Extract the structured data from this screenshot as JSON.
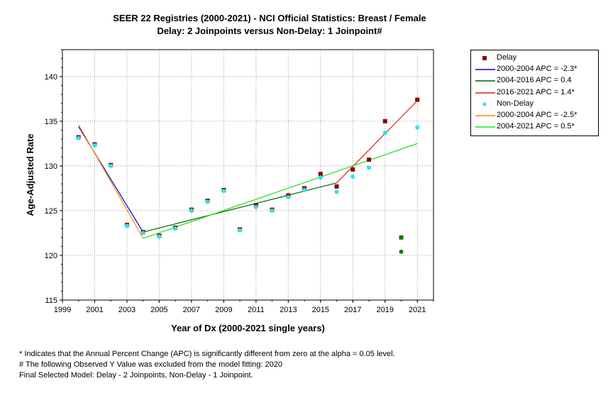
{
  "title": {
    "line1": "SEER 22 Registries (2000-2021) - NCI Official Statistics: Breast / Female",
    "line2": "Delay: 2 Joinpoints  versus  Non-Delay: 1 Joinpoint#"
  },
  "chart_data": {
    "type": "scatter",
    "xlabel": "Year of Dx (2000-2021 single years)",
    "ylabel": "Age-Adjusted Rate",
    "xlim": [
      1999,
      2022
    ],
    "ylim": [
      115,
      143
    ],
    "x_ticks": [
      "1999",
      "2001",
      "2003",
      "2005",
      "2007",
      "2009",
      "2011",
      "2013",
      "2015",
      "2017",
      "2019",
      "2021"
    ],
    "y_ticks": [
      "115",
      "120",
      "125",
      "130",
      "135",
      "140"
    ],
    "grid": true,
    "legend_position": "right",
    "series": [
      {
        "name": "Delay",
        "kind": "points",
        "marker": "square",
        "color": "#8b0000",
        "x": [
          2000,
          2001,
          2002,
          2003,
          2004,
          2005,
          2006,
          2007,
          2008,
          2009,
          2010,
          2011,
          2012,
          2013,
          2014,
          2015,
          2016,
          2017,
          2018,
          2019,
          2021
        ],
        "y": [
          133.2,
          132.4,
          130.1,
          123.4,
          122.6,
          122.2,
          123.1,
          125.1,
          126.1,
          127.3,
          122.9,
          125.6,
          125.1,
          126.7,
          127.5,
          129.1,
          127.7,
          129.6,
          130.7,
          135.0,
          137.4
        ]
      },
      {
        "name": "2000-2004 APC  =  -2.3*",
        "kind": "line",
        "color": "#0000cc",
        "x": [
          2000,
          2004
        ],
        "y": [
          134.4,
          122.6
        ]
      },
      {
        "name": "2004-2016 APC  =  0.4",
        "kind": "line",
        "color": "#006400",
        "x": [
          2004,
          2016
        ],
        "y": [
          122.6,
          128.1
        ]
      },
      {
        "name": "2016-2021 APC  =  1.4*",
        "kind": "line",
        "color": "#dd2222",
        "x": [
          2016,
          2021
        ],
        "y": [
          128.1,
          137.3
        ]
      },
      {
        "name": "Non-Delay",
        "kind": "points",
        "marker": "circle",
        "color": "#22e5f0",
        "x": [
          2000,
          2001,
          2002,
          2003,
          2004,
          2005,
          2006,
          2007,
          2008,
          2009,
          2010,
          2011,
          2012,
          2013,
          2014,
          2015,
          2016,
          2017,
          2018,
          2019,
          2021
        ],
        "y": [
          133.1,
          132.3,
          130.0,
          123.3,
          122.5,
          122.1,
          123.0,
          125.0,
          126.0,
          127.2,
          122.8,
          125.4,
          125.0,
          126.5,
          127.3,
          128.7,
          127.1,
          128.8,
          129.8,
          133.7,
          134.3
        ]
      },
      {
        "name": "2000-2004 APC  =  -2.5*",
        "kind": "line",
        "color": "#ff8c00",
        "x": [
          2000,
          2004
        ],
        "y": [
          134.6,
          121.9
        ]
      },
      {
        "name": "2004-2021 APC  =  0.5*",
        "kind": "line",
        "color": "#22dd22",
        "x": [
          2004,
          2021
        ],
        "y": [
          121.9,
          132.5
        ]
      }
    ],
    "excluded_points": [
      {
        "marker": "square",
        "color": "#008000",
        "x": 2020,
        "y": 122.0
      },
      {
        "marker": "circle",
        "color": "#008000",
        "x": 2020,
        "y": 120.4
      }
    ]
  },
  "footnotes": [
    "* Indicates that the Annual Percent Change (APC) is significantly different from zero at the alpha = 0.05 level.",
    " # The following Observed Y Value was excluded from the model fitting: 2020",
    "Final Selected Model: Delay - 2 Joinpoints, Non-Delay - 1 Joinpoint."
  ]
}
